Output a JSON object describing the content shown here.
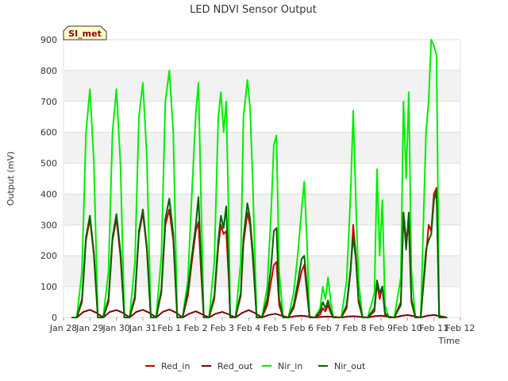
{
  "chart_data": {
    "type": "line",
    "title": "LED NDVI Sensor Output",
    "xlabel": "Time",
    "ylabel": "Output (mV)",
    "badge": "SI_met",
    "ylim": [
      0,
      900
    ],
    "yticks": [
      0,
      100,
      200,
      300,
      400,
      500,
      600,
      700,
      800,
      900
    ],
    "xlim": [
      0,
      15
    ],
    "xtick_labels": [
      "Jan 28",
      "Jan 29",
      "Jan 30",
      "Jan 31",
      "Feb 1",
      "Feb 2",
      "Feb 3",
      "Feb 4",
      "Feb 5",
      "Feb 6",
      "Feb 7",
      "Feb 8",
      "Feb 9",
      "Feb 10",
      "Feb 11",
      "Feb 12"
    ],
    "series": [
      {
        "name": "Red_in",
        "color": "#cc0000",
        "x": [
          0.3,
          0.5,
          0.7,
          0.85,
          1.0,
          1.15,
          1.3,
          1.5,
          1.7,
          1.85,
          2.0,
          2.15,
          2.3,
          2.5,
          2.7,
          2.85,
          3.0,
          3.15,
          3.3,
          3.5,
          3.7,
          3.85,
          4.0,
          4.15,
          4.3,
          4.5,
          4.7,
          4.85,
          5.0,
          5.1,
          5.2,
          5.3,
          5.5,
          5.7,
          5.85,
          5.95,
          6.05,
          6.15,
          6.25,
          6.3,
          6.5,
          6.7,
          6.8,
          6.95,
          7.05,
          7.15,
          7.3,
          7.5,
          7.7,
          7.85,
          7.95,
          8.05,
          8.15,
          8.3,
          8.5,
          8.7,
          8.85,
          9.0,
          9.1,
          9.2,
          9.3,
          9.5,
          9.7,
          9.8,
          9.9,
          10.0,
          10.1,
          10.2,
          10.5,
          10.7,
          10.85,
          10.95,
          11.05,
          11.15,
          11.3,
          11.5,
          11.75,
          11.85,
          11.95,
          12.05,
          12.15,
          12.3,
          12.5,
          12.75,
          12.85,
          12.95,
          13.05,
          13.15,
          13.3,
          13.5,
          13.7,
          13.8,
          13.9,
          14.0,
          14.1,
          14.2,
          14.5
        ],
        "y": [
          0,
          0,
          50,
          250,
          320,
          200,
          0,
          0,
          50,
          250,
          320,
          200,
          0,
          0,
          60,
          270,
          340,
          220,
          0,
          0,
          80,
          300,
          350,
          250,
          0,
          0,
          70,
          180,
          280,
          310,
          150,
          0,
          0,
          60,
          230,
          300,
          270,
          280,
          120,
          0,
          0,
          70,
          240,
          340,
          300,
          200,
          0,
          0,
          40,
          120,
          170,
          180,
          40,
          0,
          0,
          30,
          90,
          150,
          170,
          80,
          0,
          0,
          10,
          30,
          20,
          40,
          15,
          0,
          0,
          30,
          150,
          300,
          200,
          50,
          0,
          0,
          20,
          110,
          60,
          100,
          10,
          0,
          0,
          50,
          340,
          250,
          300,
          50,
          0,
          0,
          200,
          300,
          280,
          400,
          420,
          0,
          0
        ]
      },
      {
        "name": "Red_out",
        "color": "#800000",
        "x": [
          0.5,
          0.75,
          1.0,
          1.25,
          1.5,
          1.75,
          2.0,
          2.25,
          2.5,
          2.75,
          3.0,
          3.25,
          3.5,
          3.75,
          4.0,
          4.25,
          4.5,
          4.75,
          5.0,
          5.25,
          5.5,
          5.75,
          6.0,
          6.25,
          6.5,
          6.75,
          7.0,
          7.25,
          7.5,
          7.75,
          8.0,
          8.25,
          8.5,
          8.75,
          9.0,
          9.25,
          9.5,
          9.75,
          10.0,
          10.25,
          10.5,
          10.75,
          11.0,
          11.25,
          11.5,
          11.75,
          12.0,
          12.25,
          12.5,
          12.75,
          13.0,
          13.25,
          13.5,
          13.75,
          14.0,
          14.25,
          14.5
        ],
        "y": [
          0,
          18,
          25,
          15,
          0,
          18,
          24,
          15,
          0,
          18,
          25,
          15,
          0,
          18,
          26,
          16,
          0,
          12,
          20,
          10,
          0,
          12,
          18,
          10,
          0,
          15,
          24,
          14,
          0,
          8,
          12,
          6,
          0,
          4,
          6,
          3,
          0,
          2,
          3,
          2,
          0,
          3,
          4,
          2,
          0,
          4,
          6,
          3,
          0,
          5,
          8,
          4,
          0,
          6,
          8,
          4,
          0
        ]
      },
      {
        "name": "Nir_in",
        "color": "#00ee00",
        "x": [
          0.3,
          0.5,
          0.7,
          0.85,
          1.0,
          1.15,
          1.3,
          1.5,
          1.7,
          1.85,
          2.0,
          2.15,
          2.3,
          2.5,
          2.7,
          2.85,
          3.0,
          3.15,
          3.3,
          3.5,
          3.7,
          3.85,
          4.0,
          4.15,
          4.3,
          4.5,
          4.7,
          4.85,
          5.0,
          5.1,
          5.2,
          5.3,
          5.5,
          5.7,
          5.85,
          5.95,
          6.05,
          6.15,
          6.25,
          6.3,
          6.5,
          6.7,
          6.8,
          6.95,
          7.05,
          7.15,
          7.3,
          7.5,
          7.7,
          7.85,
          7.95,
          8.05,
          8.15,
          8.3,
          8.5,
          8.7,
          8.85,
          9.0,
          9.1,
          9.2,
          9.3,
          9.5,
          9.7,
          9.8,
          9.9,
          10.0,
          10.1,
          10.2,
          10.5,
          10.7,
          10.85,
          10.95,
          11.05,
          11.15,
          11.3,
          11.5,
          11.75,
          11.85,
          11.95,
          12.05,
          12.15,
          12.3,
          12.5,
          12.75,
          12.85,
          12.95,
          13.05,
          13.15,
          13.3,
          13.5,
          13.7,
          13.8,
          13.9,
          14.0,
          14.1,
          14.2,
          14.5
        ],
        "y": [
          0,
          0,
          150,
          600,
          740,
          500,
          0,
          0,
          150,
          600,
          740,
          500,
          0,
          0,
          180,
          650,
          760,
          520,
          0,
          0,
          200,
          700,
          800,
          600,
          0,
          0,
          120,
          400,
          660,
          760,
          380,
          0,
          0,
          180,
          650,
          730,
          600,
          700,
          300,
          0,
          0,
          180,
          650,
          770,
          680,
          450,
          0,
          0,
          100,
          350,
          560,
          590,
          150,
          0,
          0,
          80,
          200,
          350,
          440,
          250,
          0,
          0,
          30,
          100,
          60,
          130,
          50,
          0,
          0,
          120,
          400,
          670,
          380,
          120,
          0,
          0,
          80,
          480,
          200,
          380,
          40,
          0,
          0,
          130,
          700,
          450,
          730,
          150,
          0,
          0,
          600,
          700,
          900,
          880,
          850,
          0,
          0
        ]
      },
      {
        "name": "Nir_out",
        "color": "#006400",
        "x": [
          0.3,
          0.5,
          0.7,
          0.85,
          1.0,
          1.15,
          1.3,
          1.5,
          1.7,
          1.85,
          2.0,
          2.15,
          2.3,
          2.5,
          2.7,
          2.85,
          3.0,
          3.15,
          3.3,
          3.5,
          3.7,
          3.85,
          4.0,
          4.15,
          4.3,
          4.5,
          4.7,
          4.85,
          5.0,
          5.1,
          5.2,
          5.3,
          5.5,
          5.7,
          5.85,
          5.95,
          6.05,
          6.15,
          6.25,
          6.3,
          6.5,
          6.7,
          6.8,
          6.95,
          7.05,
          7.15,
          7.3,
          7.5,
          7.7,
          7.85,
          7.95,
          8.05,
          8.15,
          8.3,
          8.5,
          8.7,
          8.85,
          9.0,
          9.1,
          9.2,
          9.3,
          9.5,
          9.7,
          9.8,
          9.9,
          10.0,
          10.1,
          10.2,
          10.5,
          10.7,
          10.85,
          10.95,
          11.05,
          11.15,
          11.3,
          11.5,
          11.75,
          11.85,
          11.95,
          12.05,
          12.15,
          12.3,
          12.5,
          12.75,
          12.85,
          12.95,
          13.05,
          13.15,
          13.3,
          13.5,
          13.7,
          13.8,
          13.9,
          14.0,
          14.1,
          14.2,
          14.5
        ],
        "y": [
          0,
          0,
          60,
          260,
          330,
          210,
          0,
          0,
          60,
          260,
          335,
          215,
          0,
          0,
          70,
          280,
          350,
          230,
          0,
          0,
          90,
          320,
          385,
          270,
          0,
          0,
          90,
          200,
          300,
          390,
          180,
          0,
          0,
          70,
          250,
          330,
          290,
          360,
          140,
          0,
          0,
          80,
          260,
          370,
          320,
          220,
          0,
          0,
          60,
          170,
          280,
          290,
          60,
          0,
          0,
          40,
          110,
          190,
          200,
          100,
          0,
          0,
          20,
          50,
          30,
          55,
          20,
          0,
          0,
          40,
          160,
          260,
          190,
          60,
          0,
          0,
          30,
          120,
          80,
          100,
          15,
          0,
          0,
          40,
          340,
          220,
          340,
          60,
          0,
          0,
          220,
          250,
          270,
          380,
          410,
          0,
          0
        ]
      }
    ]
  }
}
